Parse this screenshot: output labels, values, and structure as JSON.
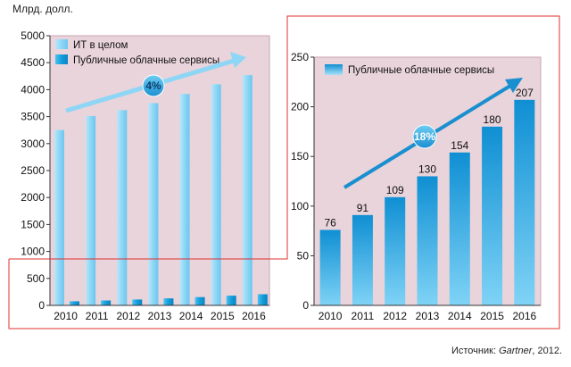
{
  "unit_label": "Млрд. долл.",
  "source": {
    "prefix": "Источник: ",
    "name": "Gartner",
    "suffix": ", 2012."
  },
  "chart_data": [
    {
      "type": "bar",
      "categories": [
        "2010",
        "2011",
        "2012",
        "2013",
        "2014",
        "2015",
        "2016"
      ],
      "series": [
        {
          "name": "ИТ в целом",
          "values": [
            3250,
            3510,
            3620,
            3750,
            3920,
            4100,
            4270
          ],
          "color": "#8dd6f5"
        },
        {
          "name": "Публичные облачные сервисы",
          "values": [
            76,
            91,
            109,
            130,
            154,
            180,
            207
          ],
          "color": "#129ddb"
        }
      ],
      "ylabel": "Млрд. долл.",
      "ylim": [
        0,
        5000
      ],
      "yticks": [
        0,
        500,
        1000,
        1500,
        2000,
        2500,
        3000,
        3500,
        4000,
        4500,
        5000
      ],
      "growth_label": "4%",
      "legend_position": "top-left",
      "grid": false,
      "background": "#e9d4db"
    },
    {
      "type": "bar",
      "categories": [
        "2010",
        "2011",
        "2012",
        "2013",
        "2014",
        "2015",
        "2016"
      ],
      "series": [
        {
          "name": "Публичные облачные сервисы",
          "values": [
            76,
            91,
            109,
            130,
            154,
            180,
            207
          ],
          "color": "#129ddb"
        }
      ],
      "data_labels": [
        "76",
        "91",
        "109",
        "130",
        "154",
        "180",
        "207"
      ],
      "ylim": [
        0,
        250
      ],
      "yticks": [
        0,
        50,
        100,
        150,
        200,
        250
      ],
      "growth_label": "18%",
      "legend_position": "top-left",
      "grid": false,
      "background": "#e9d4db"
    }
  ],
  "colors": {
    "connector": "#e03030",
    "arrow_left": "#8dd6f5",
    "arrow_right": "#1a8fd0",
    "axis": "#333333"
  }
}
